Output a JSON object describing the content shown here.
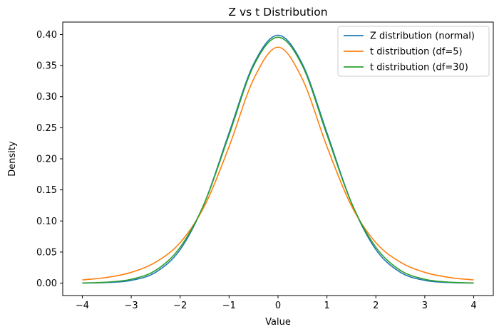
{
  "chart_data": {
    "type": "line",
    "title": "Z vs t Distribution",
    "xlabel": "Value",
    "ylabel": "Density",
    "xlim": [
      -4.4,
      4.4
    ],
    "ylim": [
      -0.02,
      0.42
    ],
    "xticks": [
      -4,
      -3,
      -2,
      -1,
      0,
      1,
      2,
      3,
      4
    ],
    "xtick_labels": [
      "−4",
      "−3",
      "−2",
      "−1",
      "0",
      "1",
      "2",
      "3",
      "4"
    ],
    "yticks": [
      0.0,
      0.05,
      0.1,
      0.15,
      0.2,
      0.25,
      0.3,
      0.35,
      0.4
    ],
    "ytick_labels": [
      "0.00",
      "0.05",
      "0.10",
      "0.15",
      "0.20",
      "0.25",
      "0.30",
      "0.35",
      "0.40"
    ],
    "grid": false,
    "legend_position": "top-right",
    "x": [
      -4,
      -3.5,
      -3,
      -2.5,
      -2,
      -1.5,
      -1,
      -0.5,
      0,
      0.5,
      1,
      1.5,
      2,
      2.5,
      3,
      3.5,
      4
    ],
    "series": [
      {
        "name": "Z distribution (normal)",
        "color": "#1f77b4",
        "values": [
          0.0001,
          0.0009,
          0.0044,
          0.0175,
          0.054,
          0.1295,
          0.242,
          0.3521,
          0.3989,
          0.3521,
          0.242,
          0.1295,
          0.054,
          0.0175,
          0.0044,
          0.0009,
          0.0001
        ]
      },
      {
        "name": "t distribution (df=5)",
        "color": "#ff7f0e",
        "values": [
          0.0051,
          0.0091,
          0.0173,
          0.0338,
          0.0651,
          0.1245,
          0.2197,
          0.3279,
          0.3796,
          0.3279,
          0.2197,
          0.1245,
          0.0651,
          0.0338,
          0.0173,
          0.0091,
          0.0051
        ]
      },
      {
        "name": "t distribution (df=30)",
        "color": "#2ca02c",
        "values": [
          0.0003,
          0.0016,
          0.0062,
          0.0206,
          0.0577,
          0.1293,
          0.2385,
          0.3493,
          0.3956,
          0.3493,
          0.2385,
          0.1293,
          0.0577,
          0.0206,
          0.0062,
          0.0016,
          0.0003
        ]
      }
    ]
  }
}
